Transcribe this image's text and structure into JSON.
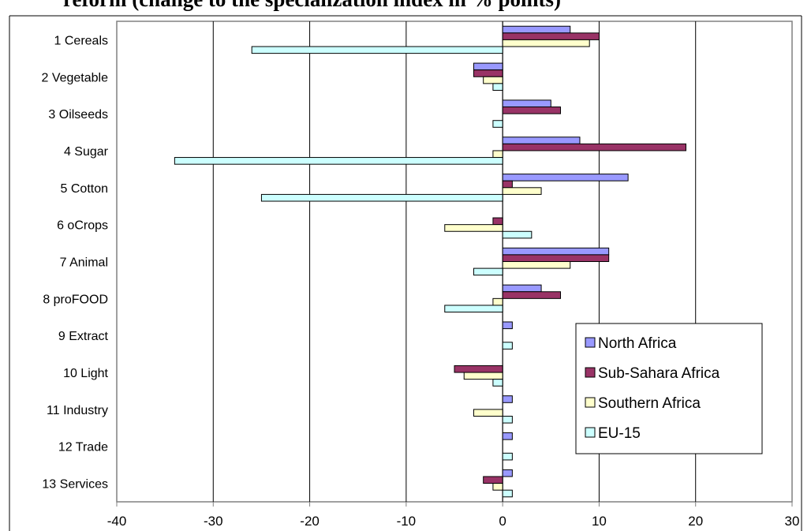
{
  "title": "reform (change to the specialization index in % points)",
  "chart_data": {
    "type": "bar",
    "orientation": "horizontal",
    "categories": [
      "1 Cereals",
      "2 Vegetable",
      "3 Oilseeds",
      "4 Sugar",
      "5 Cotton",
      "6 oCrops",
      "7 Animal",
      "8 proFOOD",
      "9 Extract",
      "10 Light",
      "11 Industry",
      "12 Trade",
      "13 Services"
    ],
    "series": [
      {
        "name": "North Africa",
        "color": "#9999ff",
        "values": [
          7,
          -3,
          5,
          8,
          13,
          0,
          11,
          4,
          1,
          0,
          1,
          1,
          1
        ]
      },
      {
        "name": "Sub-Sahara Africa",
        "color": "#993366",
        "values": [
          10,
          -3,
          6,
          19,
          1,
          -1,
          11,
          6,
          0,
          -5,
          0,
          0,
          -2
        ]
      },
      {
        "name": "Southern Africa",
        "color": "#ffffcc",
        "values": [
          9,
          -2,
          0,
          -1,
          4,
          -6,
          7,
          -1,
          0,
          -4,
          -3,
          0,
          -1
        ]
      },
      {
        "name": "EU-15",
        "color": "#ccffff",
        "values": [
          -26,
          -1,
          -1,
          -34,
          -25,
          3,
          -3,
          -6,
          1,
          -1,
          1,
          1,
          1
        ]
      }
    ],
    "xlim": [
      -40,
      30
    ],
    "xticks": [
      -40,
      -30,
      -20,
      -10,
      0,
      10,
      20,
      30
    ],
    "legend_position": "lower-right",
    "grid": "vertical"
  }
}
